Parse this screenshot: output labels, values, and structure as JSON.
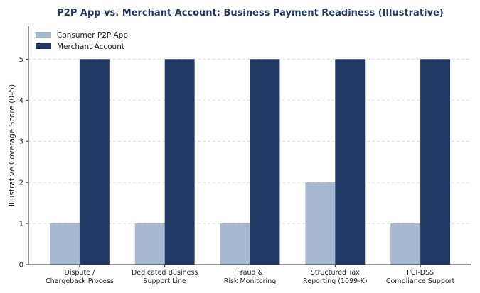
{
  "chart_data": {
    "type": "bar",
    "title": "P2P App vs. Merchant Account: Business Payment Readiness (Illustrative)",
    "y_label": "Illustrative Coverage Score (0–5)",
    "categories": [
      "Dispute /\nChargeback Process",
      "Dedicated Business\nSupport Line",
      "Fraud &\nRisk Monitoring",
      "Structured Tax\nReporting (1099-K)",
      "PCI-DSS\nCompliance Support"
    ],
    "series": [
      {
        "name": "Consumer P2P App",
        "color": "#a7b8d2",
        "values": [
          1,
          1,
          1,
          2,
          1
        ]
      },
      {
        "name": "Merchant Account",
        "color": "#1f3864",
        "values": [
          5,
          5,
          5,
          5,
          5
        ]
      }
    ],
    "ylim": [
      0,
      5.8
    ],
    "yticks": [
      0,
      1,
      2,
      3,
      4,
      5
    ],
    "grid": true,
    "legend": "upper left"
  }
}
